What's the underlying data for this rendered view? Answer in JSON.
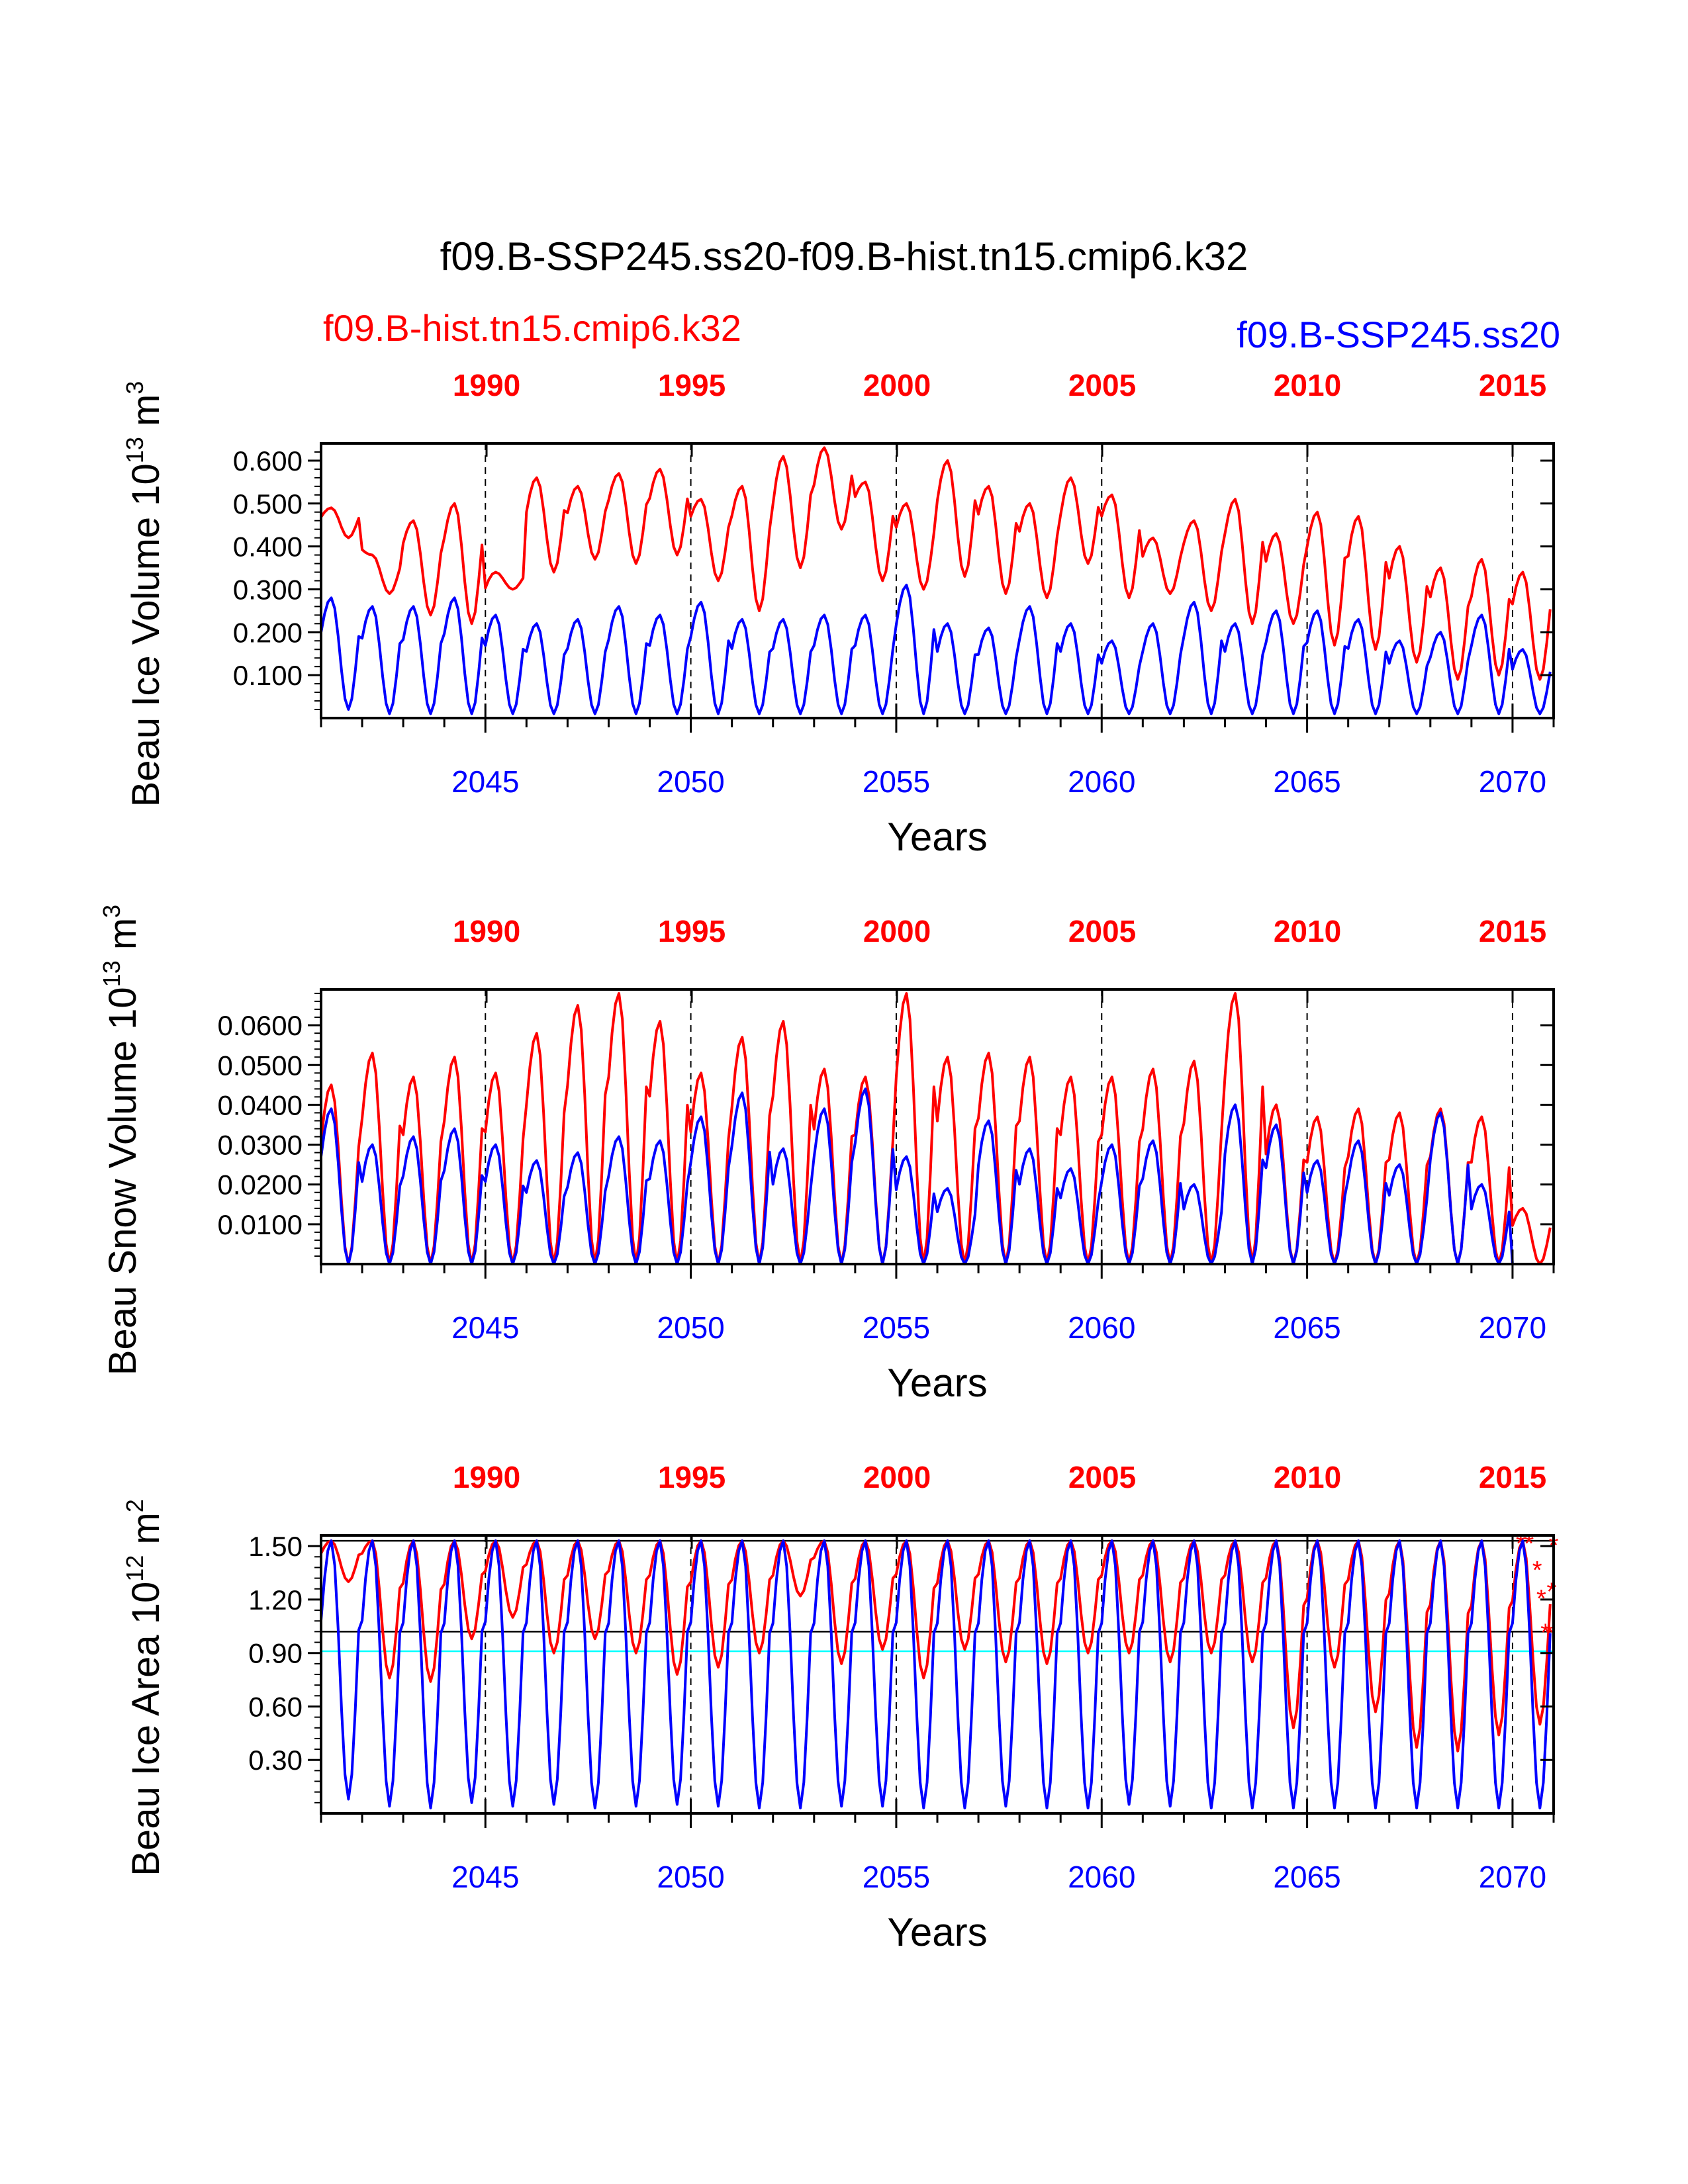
{
  "title": "f09.B-SSP245.ss20-f09.B-hist.tn15.cmip6.k32",
  "legend": {
    "left": {
      "label": "f09.B-hist.tn15.cmip6.k32",
      "color": "#ff0000"
    },
    "right": {
      "label": "f09.B-SSP245.ss20",
      "color": "#0000ff"
    }
  },
  "chart_data": [
    {
      "type": "line",
      "ylabel_main": "Beau Ice Volume 10",
      "ylabel_exp": "13",
      "ylabel_unit": " m",
      "ylabel_unit_exp": "3",
      "xlabel": "Years",
      "bottom_axis": {
        "range": [
          2041.0,
          2071.0
        ],
        "ticks": [
          2045,
          2050,
          2055,
          2060,
          2065,
          2070
        ],
        "color": "#0000ff"
      },
      "top_axis": {
        "ticks": [
          "1990",
          "1995",
          "2000",
          "2005",
          "2010",
          "2015"
        ],
        "color": "#ff0000"
      },
      "ylim": [
        0.0,
        0.64
      ],
      "yticks": [
        "0.600",
        "0.500",
        "0.400",
        "0.300",
        "0.200",
        "0.100"
      ],
      "ytick_values": [
        0.6,
        0.5,
        0.4,
        0.3,
        0.2,
        0.1
      ],
      "series": [
        {
          "name": "f09.B-hist.tn15.cmip6.k32",
          "color": "#ff0000",
          "annual_max": [
            0.49,
            0.38,
            0.46,
            0.5,
            0.34,
            0.56,
            0.54,
            0.57,
            0.58,
            0.51,
            0.54,
            0.61,
            0.63,
            0.55,
            0.5,
            0.6,
            0.54,
            0.5,
            0.56,
            0.52,
            0.42,
            0.46,
            0.51,
            0.43,
            0.48,
            0.47,
            0.4,
            0.35,
            0.37,
            0.34
          ],
          "annual_min": [
            0.42,
            0.29,
            0.24,
            0.22,
            0.3,
            0.34,
            0.37,
            0.36,
            0.38,
            0.32,
            0.25,
            0.35,
            0.44,
            0.32,
            0.3,
            0.33,
            0.29,
            0.28,
            0.36,
            0.28,
            0.29,
            0.25,
            0.22,
            0.22,
            0.17,
            0.16,
            0.13,
            0.09,
            0.1,
            0.09
          ]
        },
        {
          "name": "f09.B-SSP245.ss20",
          "color": "#0000ff",
          "annual_max": [
            0.28,
            0.26,
            0.26,
            0.28,
            0.24,
            0.22,
            0.23,
            0.26,
            0.24,
            0.27,
            0.23,
            0.23,
            0.24,
            0.24,
            0.31,
            0.22,
            0.21,
            0.26,
            0.22,
            0.18,
            0.22,
            0.27,
            0.22,
            0.25,
            0.25,
            0.23,
            0.18,
            0.2,
            0.24,
            0.16
          ],
          "annual_min": [
            0.02,
            0.01,
            0.01,
            0.01,
            0.01,
            0.01,
            0.01,
            0.01,
            0.01,
            0.01,
            0.01,
            0.01,
            0.01,
            0.01,
            0.01,
            0.01,
            0.01,
            0.01,
            0.01,
            0.01,
            0.01,
            0.01,
            0.01,
            0.01,
            0.01,
            0.01,
            0.01,
            0.01,
            0.01,
            0.01
          ]
        }
      ]
    },
    {
      "type": "line",
      "ylabel_main": "Beau Snow Volume 10",
      "ylabel_exp": "13",
      "ylabel_unit": " m",
      "ylabel_unit_exp": "3",
      "xlabel": "Years",
      "bottom_axis": {
        "range": [
          2041.0,
          2071.0
        ],
        "ticks": [
          2045,
          2050,
          2055,
          2060,
          2065,
          2070
        ],
        "color": "#0000ff"
      },
      "top_axis": {
        "ticks": [
          "1990",
          "1995",
          "2000",
          "2005",
          "2010",
          "2015"
        ],
        "color": "#ff0000"
      },
      "ylim": [
        0.0,
        0.069
      ],
      "yticks": [
        "0.0600",
        "0.0500",
        "0.0400",
        "0.0300",
        "0.0200",
        "0.0100"
      ],
      "ytick_values": [
        0.06,
        0.05,
        0.04,
        0.03,
        0.02,
        0.01
      ],
      "series": [
        {
          "name": "f09.B-hist.tn15.cmip6.k32",
          "color": "#ff0000",
          "annual_max": [
            0.045,
            0.053,
            0.047,
            0.052,
            0.048,
            0.058,
            0.065,
            0.068,
            0.061,
            0.048,
            0.057,
            0.061,
            0.049,
            0.047,
            0.068,
            0.052,
            0.053,
            0.052,
            0.047,
            0.047,
            0.049,
            0.051,
            0.068,
            0.04,
            0.037,
            0.039,
            0.038,
            0.039,
            0.037,
            0.014
          ],
          "annual_min": [
            0.0,
            0.0,
            0.0,
            0.0,
            0.0,
            0.0,
            0.0,
            0.0,
            0.0,
            0.0,
            0.0,
            0.0,
            0.0,
            0.0,
            0.0,
            0.0,
            0.0,
            0.0,
            0.0,
            0.0,
            0.0,
            0.0,
            0.0,
            0.0,
            0.0,
            0.0,
            0.0,
            0.0,
            0.0,
            0.0
          ]
        },
        {
          "name": "f09.B-SSP245.ss20",
          "color": "#0000ff",
          "annual_max": [
            0.039,
            0.03,
            0.032,
            0.034,
            0.03,
            0.026,
            0.028,
            0.032,
            0.031,
            0.037,
            0.043,
            0.029,
            0.039,
            0.044,
            0.027,
            0.019,
            0.036,
            0.029,
            0.024,
            0.03,
            0.031,
            0.02,
            0.04,
            0.035,
            0.026,
            0.031,
            0.025,
            0.038,
            0.02,
            0.0
          ],
          "annual_min": [
            0.0,
            0.0,
            0.0,
            0.0,
            0.0,
            0.0,
            0.0,
            0.0,
            0.0,
            0.0,
            0.0,
            0.0,
            0.0,
            0.0,
            0.0,
            0.0,
            0.0,
            0.0,
            0.0,
            0.0,
            0.0,
            0.0,
            0.0,
            0.0,
            0.0,
            0.0,
            0.0,
            0.0,
            0.0,
            0.0
          ]
        }
      ]
    },
    {
      "type": "line",
      "ylabel_main": "Beau Ice Area 10",
      "ylabel_exp": "12",
      "ylabel_unit": " m",
      "ylabel_unit_exp": "2",
      "xlabel": "Years",
      "bottom_axis": {
        "range": [
          2041.0,
          2071.0
        ],
        "ticks": [
          2045,
          2050,
          2055,
          2060,
          2065,
          2070
        ],
        "color": "#0000ff"
      },
      "top_axis": {
        "ticks": [
          "1990",
          "1995",
          "2000",
          "2005",
          "2010",
          "2015"
        ],
        "color": "#ff0000"
      },
      "ylim": [
        0.0,
        1.56
      ],
      "yticks": [
        "1.50",
        "1.20",
        "0.90",
        "0.60",
        "0.30"
      ],
      "ytick_values": [
        1.5,
        1.2,
        0.9,
        0.6,
        0.3
      ],
      "hlines": [
        {
          "y": 1.53,
          "color": "#000000"
        },
        {
          "y": 1.02,
          "color": "#000000"
        },
        {
          "y": 0.91,
          "color": "#00ffff"
        }
      ],
      "series": [
        {
          "name": "f09.B-hist.tn15.cmip6.k32",
          "color": "#ff0000",
          "annual_max": [
            1.53,
            1.53,
            1.53,
            1.53,
            1.53,
            1.53,
            1.53,
            1.53,
            1.53,
            1.53,
            1.53,
            1.53,
            1.53,
            1.53,
            1.53,
            1.53,
            1.53,
            1.53,
            1.53,
            1.53,
            1.53,
            1.53,
            1.53,
            1.53,
            1.53,
            1.53,
            1.53,
            1.53,
            1.53,
            1.53
          ],
          "annual_min": [
            1.3,
            0.76,
            0.74,
            0.98,
            1.1,
            0.9,
            0.98,
            0.9,
            0.78,
            0.82,
            0.9,
            1.22,
            0.84,
            0.92,
            0.76,
            0.92,
            0.85,
            0.84,
            0.9,
            0.9,
            0.85,
            0.9,
            0.85,
            0.48,
            0.82,
            0.57,
            0.37,
            0.35,
            0.44,
            0.5
          ],
          "markers": [
            [
              2070.2,
              1.52
            ],
            [
              2070.4,
              1.52
            ],
            [
              2070.6,
              1.37
            ],
            [
              2070.7,
              1.21
            ],
            [
              2070.8,
              1.02
            ],
            [
              2070.9,
              1.02
            ],
            [
              2070.95,
              1.25
            ],
            [
              2071.0,
              1.51
            ]
          ]
        },
        {
          "name": "f09.B-SSP245.ss20",
          "color": "#0000ff",
          "annual_max": [
            1.53,
            1.53,
            1.53,
            1.53,
            1.53,
            1.53,
            1.53,
            1.53,
            1.53,
            1.53,
            1.53,
            1.53,
            1.53,
            1.53,
            1.53,
            1.53,
            1.53,
            1.53,
            1.53,
            1.53,
            1.53,
            1.53,
            1.53,
            1.53,
            1.53,
            1.53,
            1.53,
            1.53,
            1.53,
            1.53
          ],
          "annual_min": [
            0.08,
            0.04,
            0.03,
            0.06,
            0.04,
            0.05,
            0.03,
            0.04,
            0.05,
            0.04,
            0.03,
            0.03,
            0.04,
            0.04,
            0.03,
            0.03,
            0.04,
            0.03,
            0.03,
            0.05,
            0.04,
            0.03,
            0.03,
            0.03,
            0.03,
            0.03,
            0.03,
            0.03,
            0.03,
            0.03
          ]
        }
      ]
    }
  ]
}
